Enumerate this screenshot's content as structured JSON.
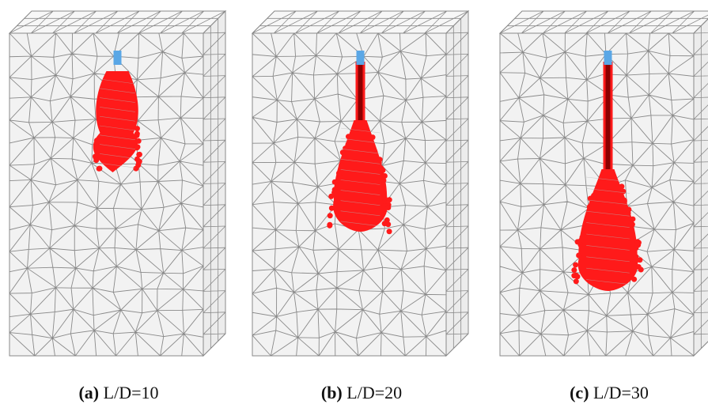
{
  "panels": [
    {
      "letter": "(a)",
      "label": "L/D=10",
      "ratio": 10
    },
    {
      "letter": "(b)",
      "label": "L/D=20",
      "ratio": 20
    },
    {
      "letter": "(c)",
      "label": "L/D=30",
      "ratio": 30
    }
  ],
  "colors": {
    "mesh": "#8a8a8a",
    "soil_face": "#f2f2f2",
    "failure_zone": "#ff1a1a",
    "pile_head": "#5aa7e6",
    "pile_shaft": "#8b0000"
  }
}
